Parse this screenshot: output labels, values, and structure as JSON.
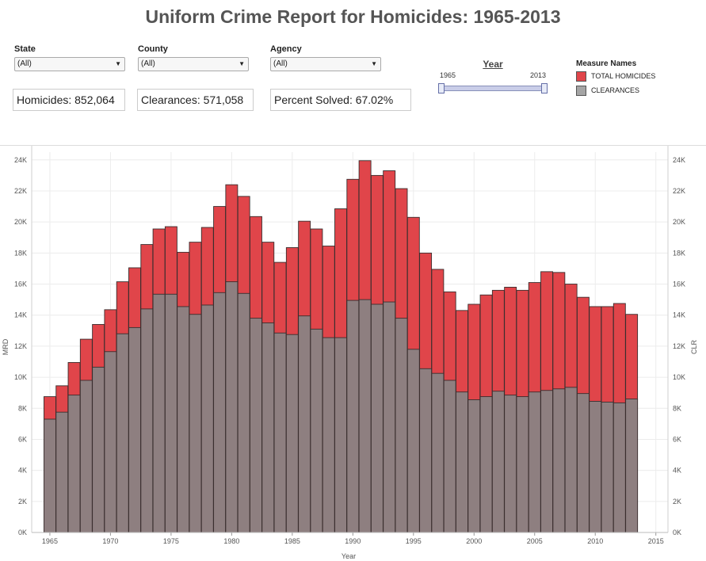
{
  "title": "Uniform Crime Report for Homicides: 1965-2013",
  "filters": [
    {
      "label": "State",
      "value": "(All)"
    },
    {
      "label": "County",
      "value": "(All)"
    },
    {
      "label": "Agency",
      "value": "(All)"
    }
  ],
  "kpis": {
    "homicides": "Homicides: 852,064",
    "clearances": "Clearances: 571,058",
    "percent": "Percent Solved: 67.02%"
  },
  "year_filter": {
    "label": "Year",
    "min": "1965",
    "max": "2013"
  },
  "legend": {
    "title": "Measure Names",
    "items": [
      {
        "label": "TOTAL HOMICIDES",
        "color": "#e0454a"
      },
      {
        "label": "CLEARANCES",
        "color": "#a5a5a5"
      }
    ]
  },
  "chart_data": {
    "type": "bar",
    "stacked": "overlay",
    "xlabel": "Year",
    "ylabel": "MRD",
    "ylabel_right": "CLR",
    "ylim": [
      0,
      24500
    ],
    "xlim": [
      1963.5,
      2016
    ],
    "y_ticks": [
      "0K",
      "2K",
      "4K",
      "6K",
      "8K",
      "10K",
      "12K",
      "14K",
      "16K",
      "18K",
      "20K",
      "22K",
      "24K"
    ],
    "x_ticks": [
      "1965",
      "1970",
      "1975",
      "1980",
      "1985",
      "1990",
      "1995",
      "2000",
      "2005",
      "2010",
      "2015"
    ],
    "grid": true,
    "categories": [
      1965,
      1966,
      1967,
      1968,
      1969,
      1970,
      1971,
      1972,
      1973,
      1974,
      1975,
      1976,
      1977,
      1978,
      1979,
      1980,
      1981,
      1982,
      1983,
      1984,
      1985,
      1986,
      1987,
      1988,
      1989,
      1990,
      1991,
      1992,
      1993,
      1994,
      1995,
      1996,
      1997,
      1998,
      1999,
      2000,
      2001,
      2002,
      2003,
      2004,
      2005,
      2006,
      2007,
      2008,
      2009,
      2010,
      2011,
      2012,
      2013
    ],
    "series": [
      {
        "name": "TOTAL HOMICIDES",
        "color": "#e0454a",
        "values": [
          8750,
          9450,
          10950,
          12450,
          13400,
          14350,
          16150,
          17050,
          18550,
          19550,
          19700,
          18050,
          18700,
          19650,
          21000,
          22400,
          21650,
          20350,
          18700,
          17400,
          18350,
          20050,
          19550,
          18450,
          20850,
          22750,
          23950,
          23000,
          23300,
          22150,
          20300,
          18000,
          16950,
          15500,
          14300,
          14700,
          15300,
          15600,
          15800,
          15600,
          16100,
          16800,
          16750,
          16000,
          15150,
          14550,
          14550,
          14750,
          14050
        ]
      },
      {
        "name": "CLEARANCES",
        "color": "#8e7f80",
        "values": [
          7300,
          7750,
          8850,
          9800,
          10650,
          11650,
          12800,
          13200,
          14400,
          15350,
          15350,
          14550,
          14050,
          14650,
          15450,
          16150,
          15400,
          13800,
          13500,
          12850,
          12750,
          13950,
          13100,
          12550,
          12550,
          14950,
          15000,
          14700,
          14850,
          13800,
          11800,
          10550,
          10250,
          9800,
          9050,
          8550,
          8750,
          9100,
          8850,
          8750,
          9050,
          9150,
          9250,
          9350,
          8950,
          8450,
          8400,
          8350,
          8600
        ]
      }
    ]
  }
}
